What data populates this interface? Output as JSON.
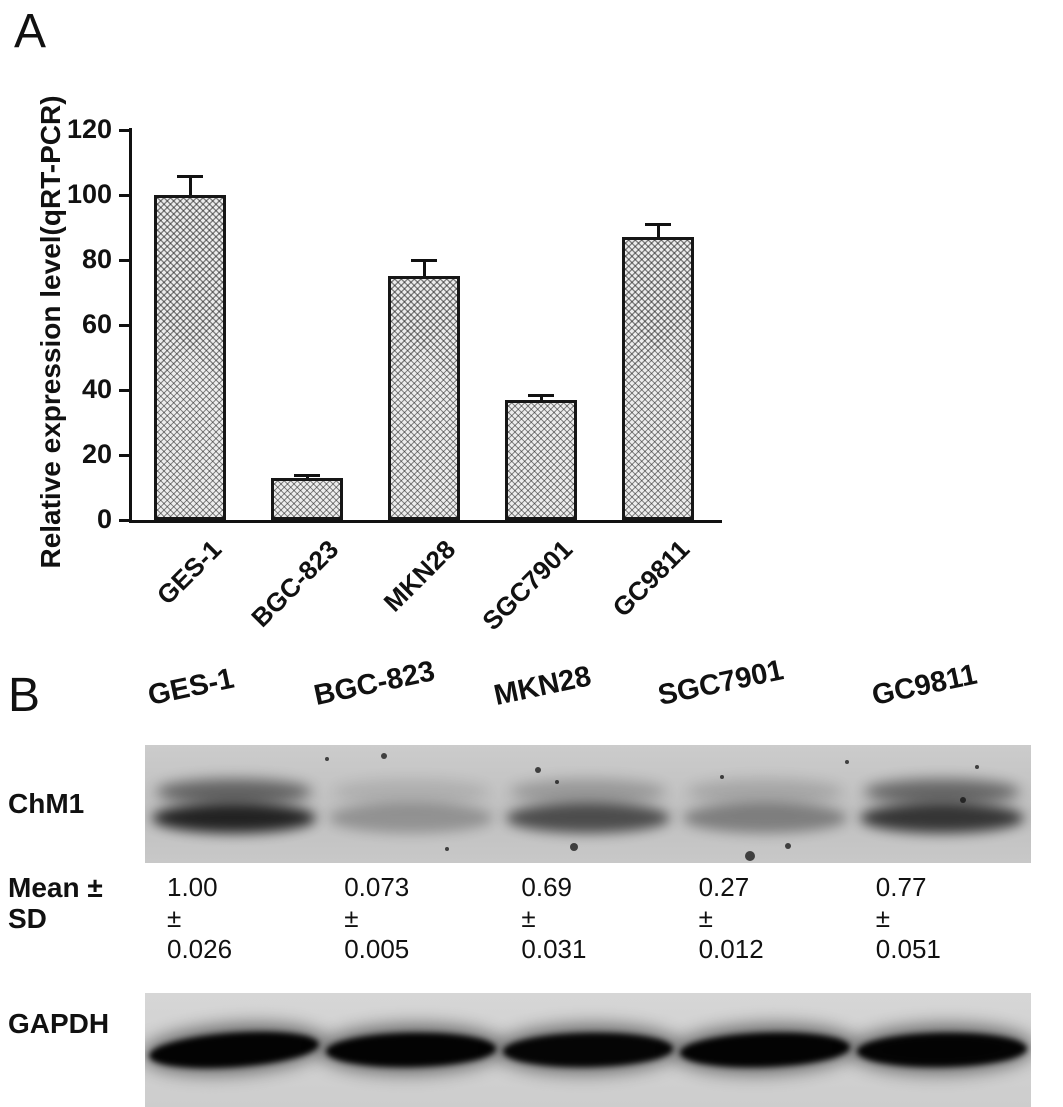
{
  "figure": {
    "panelA_label": "A",
    "panelB_label": "B"
  },
  "chart_data": {
    "type": "bar",
    "categories": [
      "GES-1",
      "BGC-823",
      "MKN28",
      "SGC7901",
      "GC9811"
    ],
    "values": [
      100,
      13,
      75,
      37,
      87
    ],
    "errors": [
      6,
      0.8,
      5,
      1.5,
      4
    ],
    "title": "",
    "xlabel": "",
    "ylabel": "Relative expression level(qRT-PCR)",
    "ylim": [
      0,
      120
    ],
    "yticks": [
      0,
      20,
      40,
      60,
      80,
      100,
      120
    ],
    "grid": false,
    "legend": "none",
    "bar_fill": "checkered-hatch",
    "bar_outline_color": "#161616"
  },
  "western_blot": {
    "lanes": [
      "GES-1",
      "BGC-823",
      "MKN28",
      "SGC7901",
      "GC9811"
    ],
    "chm1_label": "ChM1",
    "mean_label_line1": "Mean ±",
    "mean_label_line2": "SD",
    "gapdh_label": "GAPDH",
    "mean_sd": [
      {
        "mean": "1.00 ±",
        "sd": "0.026"
      },
      {
        "mean": "0.073 ±",
        "sd": "0.005"
      },
      {
        "mean": "0.69 ±",
        "sd": "0.031"
      },
      {
        "mean": "0.27 ±",
        "sd": "0.012"
      },
      {
        "mean": "0.77 ±",
        "sd": "0.051"
      }
    ],
    "chm1_band_intensity": [
      {
        "upper": 0.5,
        "lower": 0.82
      },
      {
        "upper": 0.1,
        "lower": 0.24
      },
      {
        "upper": 0.22,
        "lower": 0.6
      },
      {
        "upper": 0.15,
        "lower": 0.34
      },
      {
        "upper": 0.48,
        "lower": 0.72
      }
    ],
    "gapdh_band_intensity": [
      0.97,
      0.97,
      0.95,
      0.97,
      0.96
    ]
  }
}
